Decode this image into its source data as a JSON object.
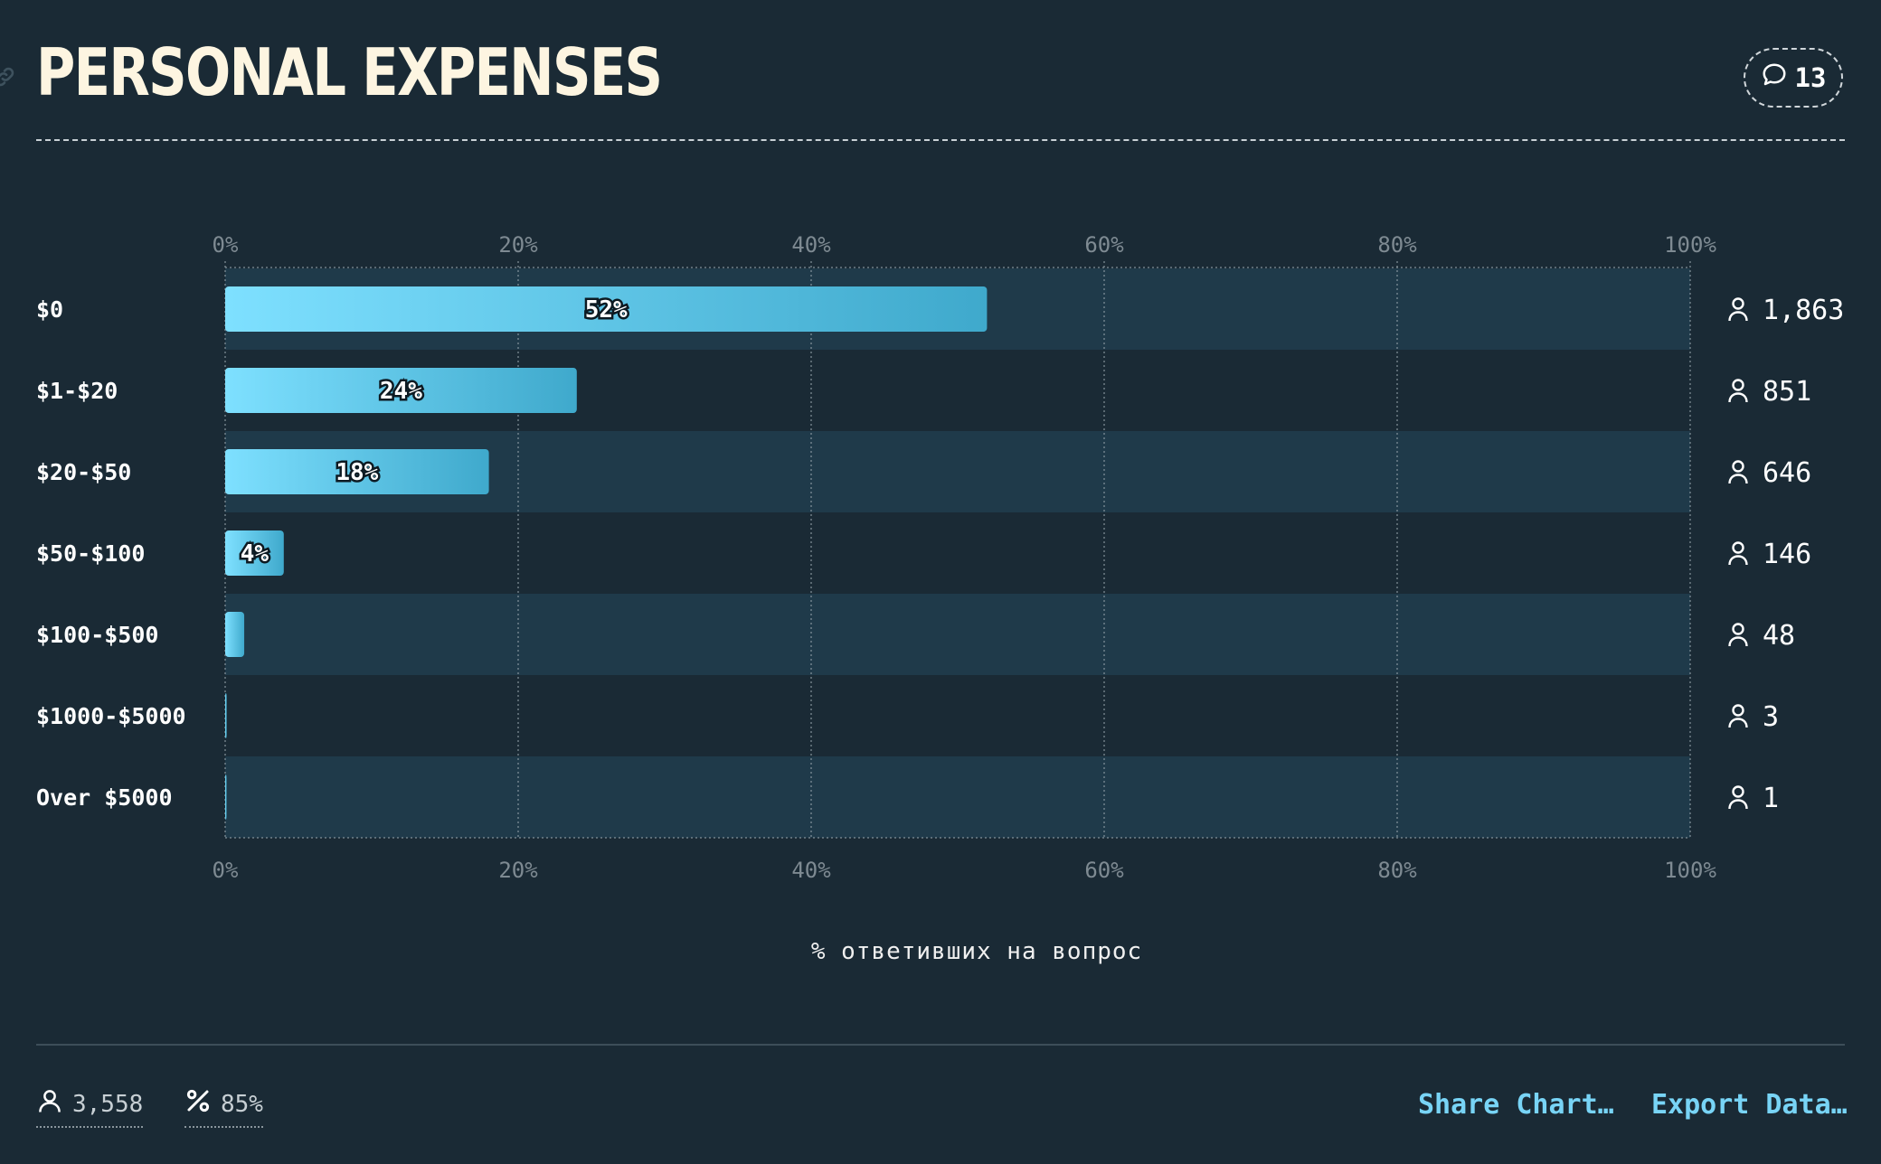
{
  "header": {
    "title": "PERSONAL EXPENSES",
    "comments_count": "13"
  },
  "chart_data": {
    "type": "bar",
    "orientation": "horizontal",
    "categories": [
      "$0",
      "$1-$20",
      "$20-$50",
      "$50-$100",
      "$100-$500",
      "$1000-$5000",
      "Over $5000"
    ],
    "values": [
      52,
      24,
      18,
      4,
      1.3,
      0.1,
      0.03
    ],
    "value_labels": [
      "52%",
      "24%",
      "18%",
      "4%",
      "",
      "",
      ""
    ],
    "counts": [
      "1,863",
      "851",
      "646",
      "146",
      "48",
      "3",
      "1"
    ],
    "xlim": [
      0,
      100
    ],
    "xticks": [
      "0%",
      "20%",
      "40%",
      "60%",
      "80%",
      "100%"
    ],
    "xlabel": "% ответивших на вопрос",
    "grid": true,
    "colors": {
      "bar_start": "#7ee0ff",
      "bar_end": "#3fa9cc",
      "row_alt": "#1f3a4a",
      "row_base": "#1a2a35"
    }
  },
  "footer": {
    "total_respondents": "3,558",
    "response_rate": "85%",
    "share_label": "Share Chart…",
    "export_label": "Export Data…"
  }
}
